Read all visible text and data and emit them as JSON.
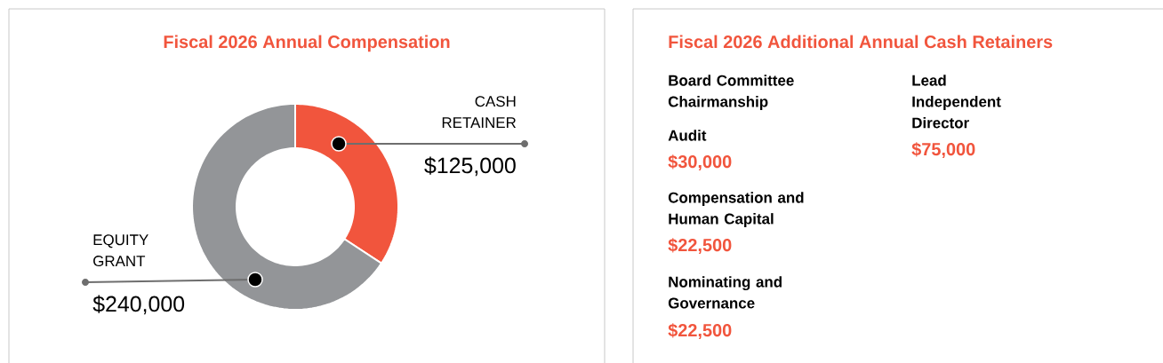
{
  "chart_data": [
    {
      "type": "donut",
      "title": "Fiscal 2026 Annual Compensation",
      "categories": [
        "CASH RETAINER",
        "EQUITY GRANT"
      ],
      "values": [
        125000,
        240000
      ],
      "colors": [
        "#f1553d",
        "#939598"
      ],
      "value_labels": [
        "$125,000",
        "$240,000"
      ]
    },
    {
      "type": "other",
      "title": "Fiscal 2026 Additional Annual Cash Retainers",
      "annotations": [
        "Board Committee Chairmanship",
        "Audit",
        "$30,000",
        "Compensation and Human Capital",
        "$22,500",
        "Nominating and Governance",
        "$22,500",
        "Lead Independent Director",
        "$75,000"
      ]
    }
  ]
}
